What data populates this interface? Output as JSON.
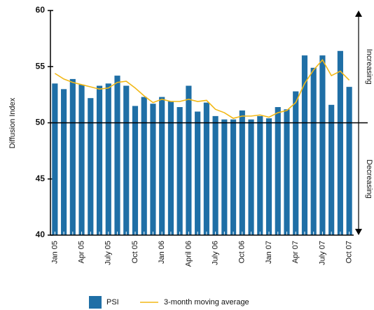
{
  "chart_data": {
    "type": "bar",
    "y_label": "Diffusion Index",
    "categories": [
      "Jan 05",
      null,
      null,
      "Apr 05",
      null,
      null,
      "July 05",
      null,
      null,
      "Oct 05",
      null,
      null,
      "Jan 06",
      null,
      null,
      "April 06",
      null,
      null,
      "July 06",
      null,
      null,
      "Oct 06",
      null,
      null,
      "Jan 07",
      null,
      null,
      "Apr 07",
      null,
      null,
      "July 07",
      null,
      null,
      "Oct 07"
    ],
    "series": [
      {
        "name": "PSI",
        "type": "bar",
        "color": "#1f6fa6",
        "values": [
          53.5,
          53.0,
          53.9,
          53.4,
          52.2,
          53.3,
          53.5,
          54.2,
          53.3,
          51.5,
          52.3,
          51.7,
          52.3,
          51.9,
          51.4,
          53.3,
          51.0,
          51.8,
          50.6,
          50.3,
          50.3,
          51.1,
          50.3,
          50.6,
          50.4,
          51.4,
          51.2,
          52.8,
          56.0,
          54.9,
          56.0,
          51.6,
          56.4,
          53.2
        ]
      },
      {
        "name": "3-month moving average",
        "type": "line",
        "color": "#f2b817",
        "values": [
          54.4,
          53.9,
          53.6,
          53.4,
          53.2,
          53.0,
          53.1,
          53.6,
          53.7,
          53.1,
          52.4,
          51.8,
          52.1,
          51.9,
          51.9,
          52.1,
          51.9,
          52.0,
          51.2,
          50.9,
          50.4,
          50.6,
          50.6,
          50.7,
          50.5,
          50.9,
          51.1,
          51.8,
          53.5,
          54.7,
          55.6,
          54.2,
          54.6,
          53.8
        ]
      }
    ],
    "ylim": [
      40,
      60
    ],
    "yticks": [
      40,
      45,
      50,
      55,
      60
    ],
    "reference_line": 50,
    "annotations": [
      "Increasing",
      "Decreasing"
    ]
  }
}
